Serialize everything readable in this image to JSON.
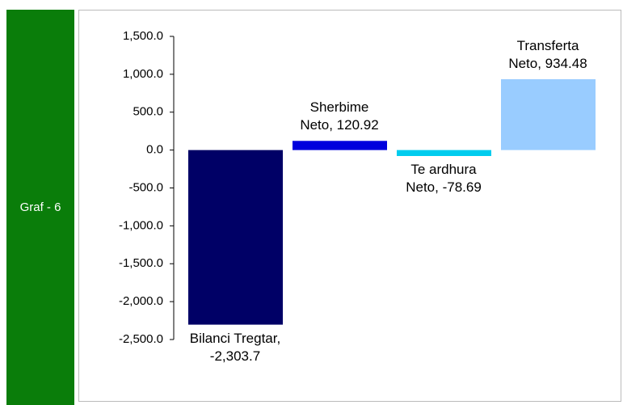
{
  "side_label": "Graf - 6",
  "chart_data": {
    "type": "bar",
    "values": [
      -2303.7,
      120.92,
      -78.69,
      934.48
    ],
    "value_labels": [
      "Bilanci Tregtar, -2,303.7",
      "Sherbime Neto, 120.92",
      "Te ardhura Neto, -78.69",
      "Transferta Neto, 934.48"
    ],
    "colors": [
      "#000066",
      "#0000dd",
      "#00ccee",
      "#99ccff"
    ],
    "ylim": [
      -2500,
      1500
    ],
    "yticks": [
      {
        "value": 1500,
        "label": "1,500.0"
      },
      {
        "value": 1000,
        "label": "1,000.0"
      },
      {
        "value": 500,
        "label": "500.0"
      },
      {
        "value": 0,
        "label": "0.0"
      },
      {
        "value": -500,
        "label": "-500.0"
      },
      {
        "value": -1000,
        "label": "-1,000.0"
      },
      {
        "value": -1500,
        "label": "-1,500.0"
      },
      {
        "value": -2000,
        "label": "-2,000.0"
      },
      {
        "value": -2500,
        "label": "-2,500.0"
      }
    ],
    "grid": false
  }
}
